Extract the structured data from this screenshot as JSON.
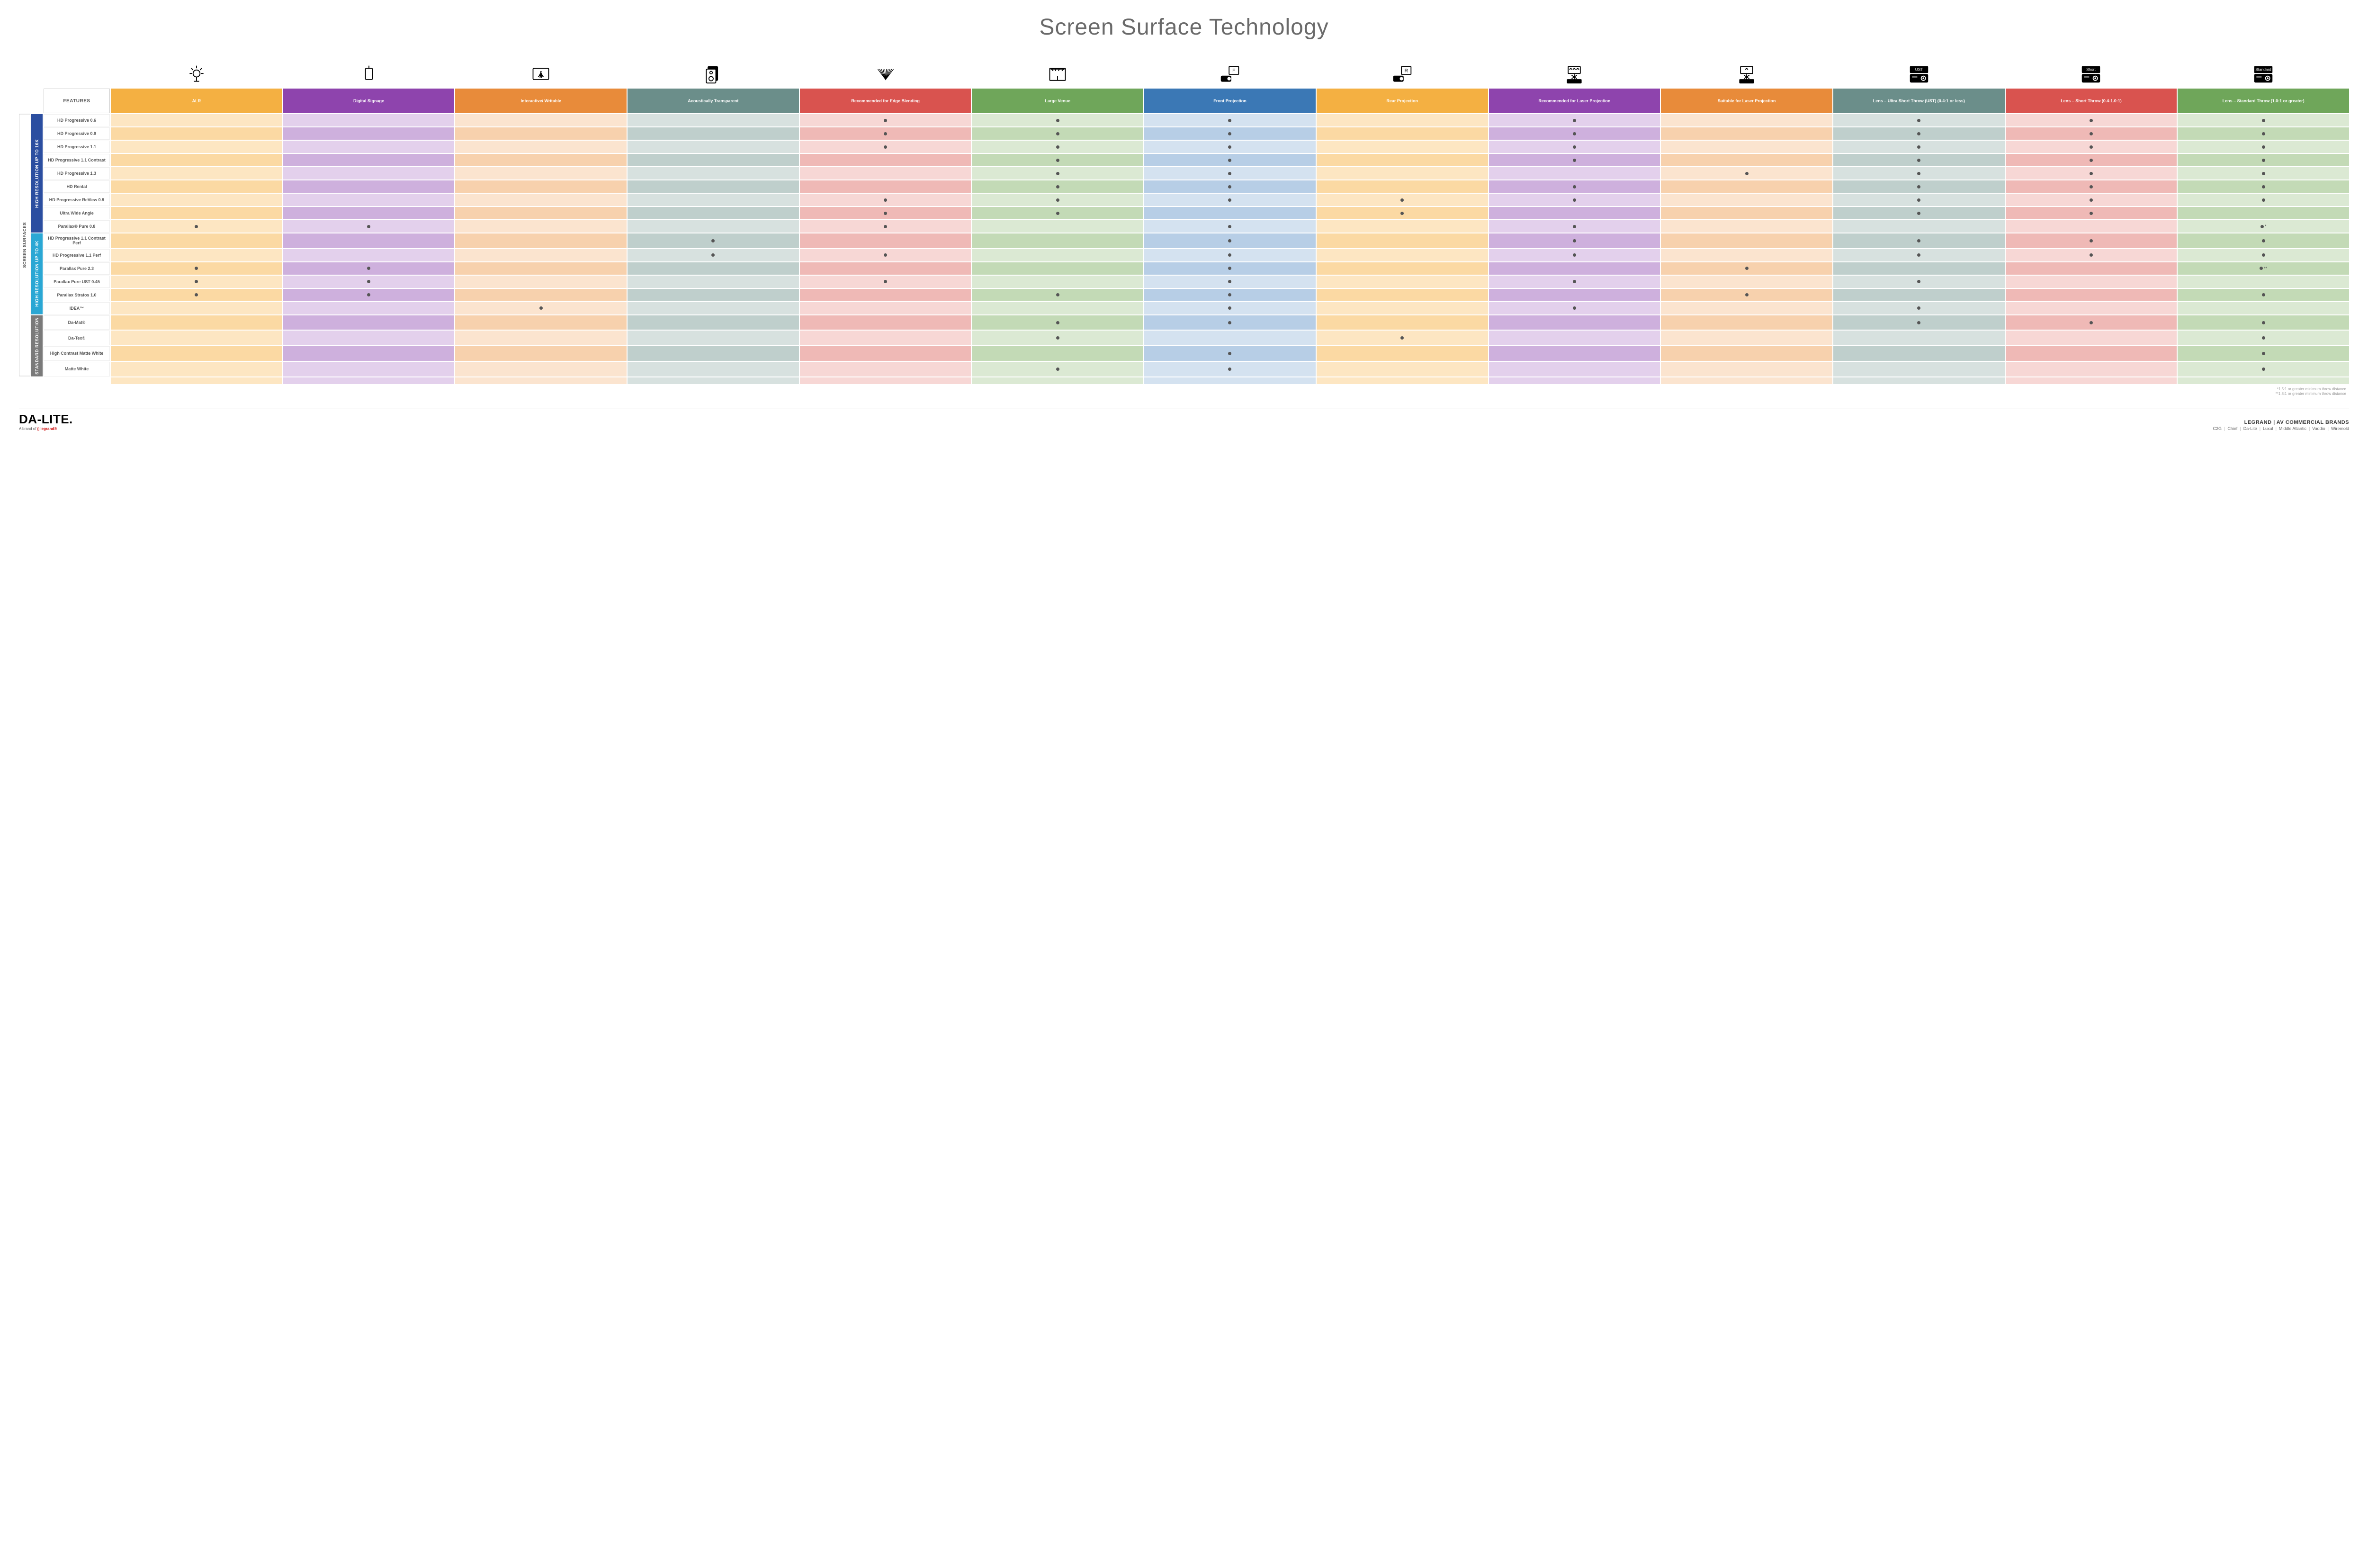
{
  "title": "Screen Surface Technology",
  "columns": [
    {
      "key": "alr",
      "label": "ALR",
      "color": "#f4b042",
      "tint": "#fde6c2",
      "alt": "#fbd9a3"
    },
    {
      "key": "ds",
      "label": "Digital Signage",
      "color": "#8e44ad",
      "tint": "#e3d0ec",
      "alt": "#ceb0dd"
    },
    {
      "key": "iw",
      "label": "Interactive/ Writable",
      "color": "#e88b3a",
      "tint": "#fbe4cf",
      "alt": "#f7d1ad"
    },
    {
      "key": "at",
      "label": "Acoustically Transparent",
      "color": "#6b8e8a",
      "tint": "#d7e1df",
      "alt": "#bfcfcc"
    },
    {
      "key": "edge",
      "label": "Recommended for Edge Blending",
      "color": "#d9534f",
      "tint": "#f7d7d5",
      "alt": "#efb9b6"
    },
    {
      "key": "lv",
      "label": "Large Venue",
      "color": "#6fa65a",
      "tint": "#dbe9d3",
      "alt": "#c3dab6"
    },
    {
      "key": "fp",
      "label": "Front Projection",
      "color": "#3b78b5",
      "tint": "#d4e2f0",
      "alt": "#b7cee6"
    },
    {
      "key": "rp",
      "label": "Rear Projection",
      "color": "#f4b042",
      "tint": "#fde6c2",
      "alt": "#fbd9a3"
    },
    {
      "key": "rl",
      "label": "Recommended for Laser Projection",
      "color": "#8e44ad",
      "tint": "#e3d0ec",
      "alt": "#ceb0dd"
    },
    {
      "key": "sl",
      "label": "Suitable for Laser Projection",
      "color": "#e88b3a",
      "tint": "#fbe4cf",
      "alt": "#f7d1ad"
    },
    {
      "key": "ust",
      "label": "Lens – Ultra Short Throw (UST) (0.4:1 or less)",
      "color": "#6b8e8a",
      "tint": "#d7e1df",
      "alt": "#bfcfcc"
    },
    {
      "key": "st",
      "label": "Lens – Short Throw (0.4-1.0:1)",
      "color": "#d9534f",
      "tint": "#f7d7d5",
      "alt": "#efb9b6"
    },
    {
      "key": "std",
      "label": "Lens – Standard Throw (1.0:1 or greater)",
      "color": "#6fa65a",
      "tint": "#dbe9d3",
      "alt": "#c3dab6"
    }
  ],
  "features_header": "FEATURES",
  "groups": [
    {
      "key": "g16k",
      "label": "HIGH RESOLUTION UP TO 16K",
      "color": "#2b4ea0",
      "rows": [
        {
          "label": "HD Progressive 0.6",
          "dots": [
            "edge",
            "lv",
            "fp",
            "rl",
            "ust",
            "st",
            "std"
          ]
        },
        {
          "label": "HD Progressive 0.9",
          "dots": [
            "edge",
            "lv",
            "fp",
            "rl",
            "ust",
            "st",
            "std"
          ]
        },
        {
          "label": "HD Progressive 1.1",
          "dots": [
            "edge",
            "lv",
            "fp",
            "rl",
            "ust",
            "st",
            "std"
          ]
        },
        {
          "label": "HD Progressive 1.1 Contrast",
          "dots": [
            "lv",
            "fp",
            "rl",
            "ust",
            "st",
            "std"
          ]
        },
        {
          "label": "HD Progressive 1.3",
          "dots": [
            "lv",
            "fp",
            "sl",
            "ust",
            "st",
            "std"
          ]
        },
        {
          "label": "HD Rental",
          "dots": [
            "lv",
            "fp",
            "rl",
            "ust",
            "st",
            "std"
          ]
        },
        {
          "label": "HD Progressive ReView 0.9",
          "dots": [
            "edge",
            "lv",
            "fp",
            "rp",
            "rl",
            "ust",
            "st",
            "std"
          ]
        },
        {
          "label": "Ultra Wide Angle",
          "dots": [
            "edge",
            "lv",
            "rp",
            "ust",
            "st"
          ]
        },
        {
          "label": "Parallax® Pure 0.8",
          "dots": [
            "alr",
            "ds",
            "edge",
            "fp",
            "rl",
            "std"
          ],
          "note": "*"
        }
      ]
    },
    {
      "key": "g4k",
      "label": "HIGH RESOLUTION UP TO 4K",
      "color": "#2aa7d4",
      "rows": [
        {
          "label": "HD Progressive 1.1 Contrast Perf",
          "dots": [
            "at",
            "fp",
            "rl",
            "ust",
            "st",
            "std"
          ]
        },
        {
          "label": "HD Progressive 1.1 Perf",
          "dots": [
            "at",
            "edge",
            "fp",
            "rl",
            "ust",
            "st",
            "std"
          ]
        },
        {
          "label": "Parallax Pure 2.3",
          "dots": [
            "alr",
            "ds",
            "fp",
            "sl",
            "std"
          ],
          "note": "**"
        },
        {
          "label": "Parallax Pure UST 0.45",
          "dots": [
            "alr",
            "ds",
            "edge",
            "fp",
            "rl",
            "ust"
          ]
        },
        {
          "label": "Parallax Stratos 1.0",
          "dots": [
            "alr",
            "ds",
            "lv",
            "fp",
            "sl",
            "std"
          ]
        },
        {
          "label": "IDEA™",
          "dots": [
            "iw",
            "fp",
            "rl",
            "ust"
          ]
        }
      ]
    },
    {
      "key": "gstd",
      "label": "STANDARD RESOLUTION",
      "color": "#7a7a7a",
      "rows": [
        {
          "label": "Da-Mat®",
          "dots": [
            "lv",
            "fp",
            "ust",
            "st",
            "std"
          ]
        },
        {
          "label": "Da-Tex®",
          "dots": [
            "lv",
            "rp",
            "std"
          ]
        },
        {
          "label": "High Contrast Matte White",
          "dots": [
            "fp",
            "std"
          ]
        },
        {
          "label": "Matte White",
          "dots": [
            "lv",
            "fp",
            "std"
          ]
        }
      ]
    }
  ],
  "outer_label": "SCREEN SURFACES",
  "footnotes": [
    "*1.5:1 or greater minimum throw distance",
    "**1.8:1 or greater minimum throw distance"
  ],
  "footer": {
    "logo": "DA-LITE.",
    "logo_sub_prefix": "A brand of ",
    "logo_sub_brand": "legrand®",
    "brands_title": "LEGRAND | AV COMMERCIAL BRANDS",
    "brands": [
      "C2G",
      "Chief",
      "Da-Lite",
      "Luxul",
      "Middle Atlantic",
      "Vaddio",
      "Wiremold"
    ]
  },
  "icon_text": {
    "ust": "UST",
    "st": "Short",
    "std": "Standard",
    "fp": "F",
    "rp": "R"
  }
}
